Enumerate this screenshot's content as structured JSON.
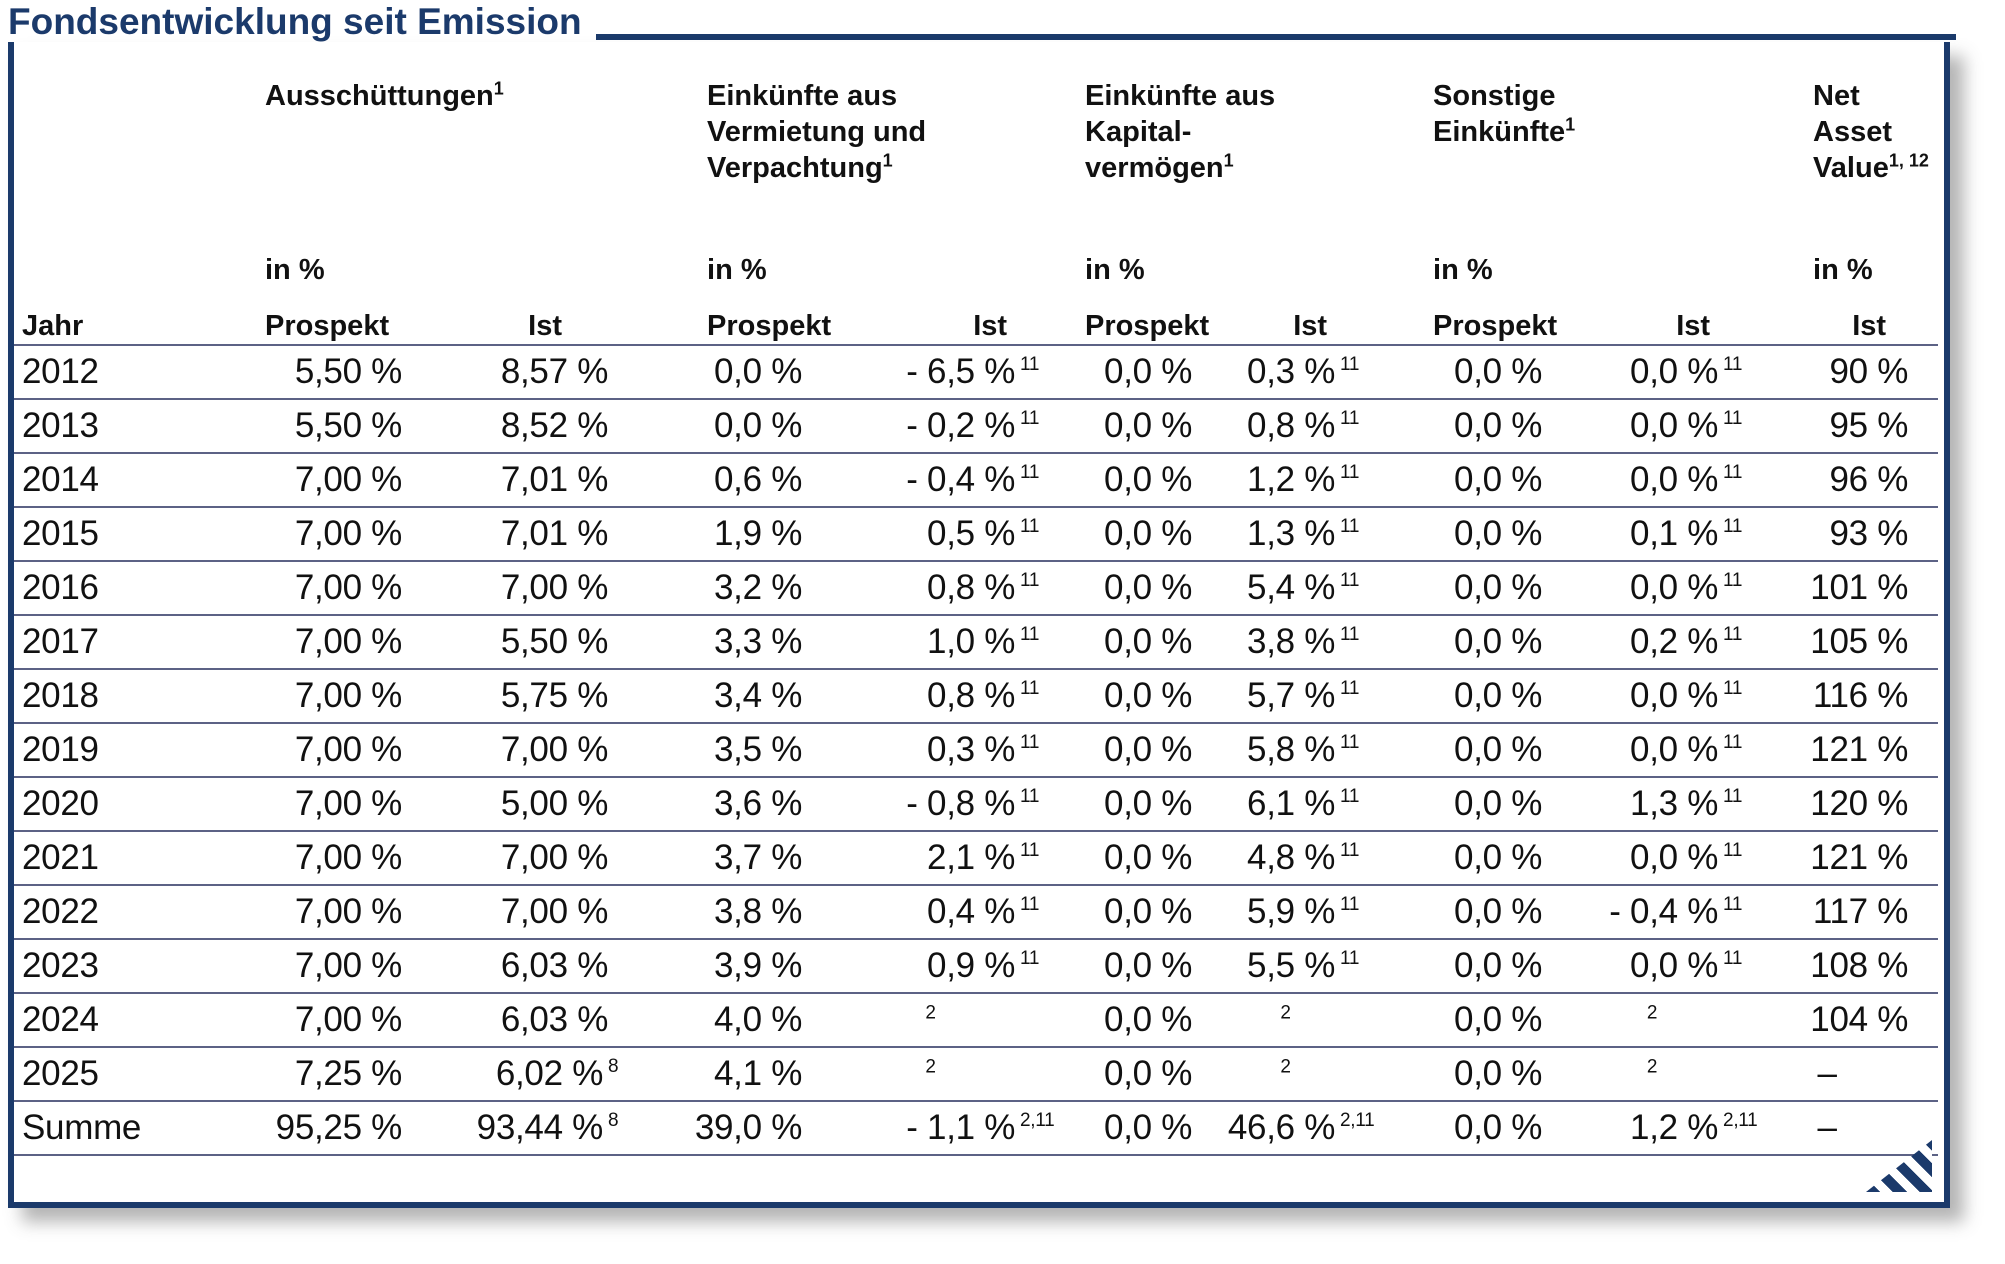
{
  "title": "Fondsentwicklung seit Emission",
  "colors": {
    "accent_navy": "#1b3a6b",
    "row_separator": "#5c6285",
    "text": "#111111"
  },
  "table": {
    "row_header": "Jahr",
    "col_prospekt": "Prospekt",
    "col_ist": "Ist",
    "groups": [
      {
        "title_lines": [
          "Ausschüttungen"
        ],
        "sup": "1",
        "unit": "in %",
        "cols": [
          "Prospekt",
          "Ist"
        ]
      },
      {
        "title_lines": [
          "Einkünfte aus",
          "Vermietung und",
          "Verpachtung"
        ],
        "sup": "1",
        "unit": "in %",
        "cols": [
          "Prospekt",
          "Ist"
        ]
      },
      {
        "title_lines": [
          "Einkünfte aus",
          "Kapital-",
          "vermögen"
        ],
        "sup": "1",
        "unit": "in %",
        "cols": [
          "Prospekt",
          "Ist"
        ]
      },
      {
        "title_lines": [
          "Sonstige",
          "Einkünfte"
        ],
        "sup": "1",
        "unit": "in %",
        "cols": [
          "Prospekt",
          "Ist"
        ]
      },
      {
        "title_lines": [
          "Net",
          "Asset",
          "Value"
        ],
        "sup": "1, 12",
        "unit": "in %",
        "cols": [
          "Ist"
        ]
      }
    ],
    "rows": [
      {
        "label": "2012",
        "cells": [
          {
            "v": "5,50 %"
          },
          {
            "v": "8,57 %"
          },
          {
            "v": "0,0 %"
          },
          {
            "v": "- 6,5 %",
            "s": "11"
          },
          {
            "v": "0,0 %"
          },
          {
            "v": "0,3 %",
            "s": "11"
          },
          {
            "v": "0,0 %"
          },
          {
            "v": "0,0 %",
            "s": "11"
          },
          {
            "v": "90 %"
          }
        ]
      },
      {
        "label": "2013",
        "cells": [
          {
            "v": "5,50 %"
          },
          {
            "v": "8,52 %"
          },
          {
            "v": "0,0 %"
          },
          {
            "v": "- 0,2 %",
            "s": "11"
          },
          {
            "v": "0,0 %"
          },
          {
            "v": "0,8 %",
            "s": "11"
          },
          {
            "v": "0,0 %"
          },
          {
            "v": "0,0 %",
            "s": "11"
          },
          {
            "v": "95 %"
          }
        ]
      },
      {
        "label": "2014",
        "cells": [
          {
            "v": "7,00 %"
          },
          {
            "v": "7,01 %"
          },
          {
            "v": "0,6 %"
          },
          {
            "v": "- 0,4 %",
            "s": "11"
          },
          {
            "v": "0,0 %"
          },
          {
            "v": "1,2 %",
            "s": "11"
          },
          {
            "v": "0,0 %"
          },
          {
            "v": "0,0 %",
            "s": "11"
          },
          {
            "v": "96 %"
          }
        ]
      },
      {
        "label": "2015",
        "cells": [
          {
            "v": "7,00 %"
          },
          {
            "v": "7,01 %"
          },
          {
            "v": "1,9 %"
          },
          {
            "v": "0,5 %",
            "s": "11"
          },
          {
            "v": "0,0 %"
          },
          {
            "v": "1,3 %",
            "s": "11"
          },
          {
            "v": "0,0 %"
          },
          {
            "v": "0,1 %",
            "s": "11"
          },
          {
            "v": "93 %"
          }
        ]
      },
      {
        "label": "2016",
        "cells": [
          {
            "v": "7,00 %"
          },
          {
            "v": "7,00 %"
          },
          {
            "v": "3,2 %"
          },
          {
            "v": "0,8 %",
            "s": "11"
          },
          {
            "v": "0,0 %"
          },
          {
            "v": "5,4 %",
            "s": "11"
          },
          {
            "v": "0,0 %"
          },
          {
            "v": "0,0 %",
            "s": "11"
          },
          {
            "v": "101 %"
          }
        ]
      },
      {
        "label": "2017",
        "cells": [
          {
            "v": "7,00 %"
          },
          {
            "v": "5,50 %"
          },
          {
            "v": "3,3 %"
          },
          {
            "v": "1,0 %",
            "s": "11"
          },
          {
            "v": "0,0 %"
          },
          {
            "v": "3,8 %",
            "s": "11"
          },
          {
            "v": "0,0 %"
          },
          {
            "v": "0,2 %",
            "s": "11"
          },
          {
            "v": "105 %"
          }
        ]
      },
      {
        "label": "2018",
        "cells": [
          {
            "v": "7,00 %"
          },
          {
            "v": "5,75 %"
          },
          {
            "v": "3,4 %"
          },
          {
            "v": "0,8 %",
            "s": "11"
          },
          {
            "v": "0,0 %"
          },
          {
            "v": "5,7 %",
            "s": "11"
          },
          {
            "v": "0,0 %"
          },
          {
            "v": "0,0 %",
            "s": "11"
          },
          {
            "v": "116 %"
          }
        ]
      },
      {
        "label": "2019",
        "cells": [
          {
            "v": "7,00 %"
          },
          {
            "v": "7,00 %"
          },
          {
            "v": "3,5 %"
          },
          {
            "v": "0,3 %",
            "s": "11"
          },
          {
            "v": "0,0 %"
          },
          {
            "v": "5,8 %",
            "s": "11"
          },
          {
            "v": "0,0 %"
          },
          {
            "v": "0,0 %",
            "s": "11"
          },
          {
            "v": "121 %"
          }
        ]
      },
      {
        "label": "2020",
        "cells": [
          {
            "v": "7,00 %"
          },
          {
            "v": "5,00 %"
          },
          {
            "v": "3,6 %"
          },
          {
            "v": "- 0,8 %",
            "s": "11"
          },
          {
            "v": "0,0 %"
          },
          {
            "v": "6,1 %",
            "s": "11"
          },
          {
            "v": "0,0 %"
          },
          {
            "v": "1,3 %",
            "s": "11"
          },
          {
            "v": "120 %"
          }
        ]
      },
      {
        "label": "2021",
        "cells": [
          {
            "v": "7,00 %"
          },
          {
            "v": "7,00 %"
          },
          {
            "v": "3,7 %"
          },
          {
            "v": "2,1 %",
            "s": "11"
          },
          {
            "v": "0,0 %"
          },
          {
            "v": "4,8 %",
            "s": "11"
          },
          {
            "v": "0,0 %"
          },
          {
            "v": "0,0 %",
            "s": "11"
          },
          {
            "v": "121 %"
          }
        ]
      },
      {
        "label": "2022",
        "cells": [
          {
            "v": "7,00 %"
          },
          {
            "v": "7,00 %"
          },
          {
            "v": "3,8 %"
          },
          {
            "v": "0,4 %",
            "s": "11"
          },
          {
            "v": "0,0 %"
          },
          {
            "v": "5,9 %",
            "s": "11"
          },
          {
            "v": "0,0 %"
          },
          {
            "v": "- 0,4 %",
            "s": "11"
          },
          {
            "v": "117 %"
          }
        ]
      },
      {
        "label": "2023",
        "cells": [
          {
            "v": "7,00 %"
          },
          {
            "v": "6,03 %"
          },
          {
            "v": "3,9 %"
          },
          {
            "v": "0,9 %",
            "s": "11"
          },
          {
            "v": "0,0 %"
          },
          {
            "v": "5,5 %",
            "s": "11"
          },
          {
            "v": "0,0 %"
          },
          {
            "v": "0,0 %",
            "s": "11"
          },
          {
            "v": "108 %"
          }
        ]
      },
      {
        "label": "2024",
        "cells": [
          {
            "v": "7,00 %"
          },
          {
            "v": "6,03 %"
          },
          {
            "v": "4,0 %"
          },
          {
            "s": "2"
          },
          {
            "v": "0,0 %"
          },
          {
            "s": "2"
          },
          {
            "v": "0,0 %"
          },
          {
            "s": "2"
          },
          {
            "v": "104 %"
          }
        ]
      },
      {
        "label": "2025",
        "cells": [
          {
            "v": "7,25 %"
          },
          {
            "v": "6,02 %",
            "s": "8"
          },
          {
            "v": "4,1 %"
          },
          {
            "s": "2"
          },
          {
            "v": "0,0 %"
          },
          {
            "s": "2"
          },
          {
            "v": "0,0 %"
          },
          {
            "s": "2"
          },
          {
            "v": "–"
          }
        ]
      },
      {
        "label": "Summe",
        "cells": [
          {
            "v": "95,25 %"
          },
          {
            "v": "93,44 %",
            "s": "8"
          },
          {
            "v": "39,0 %"
          },
          {
            "v": "- 1,1 %",
            "s": "2,11"
          },
          {
            "v": "0,0 %"
          },
          {
            "v": "46,6 %",
            "s": "2,11"
          },
          {
            "v": "0,0 %"
          },
          {
            "v": "1,2 %",
            "s": "2,11"
          },
          {
            "v": "–"
          }
        ]
      }
    ]
  },
  "logo": "diagonal-stripes-triangle"
}
